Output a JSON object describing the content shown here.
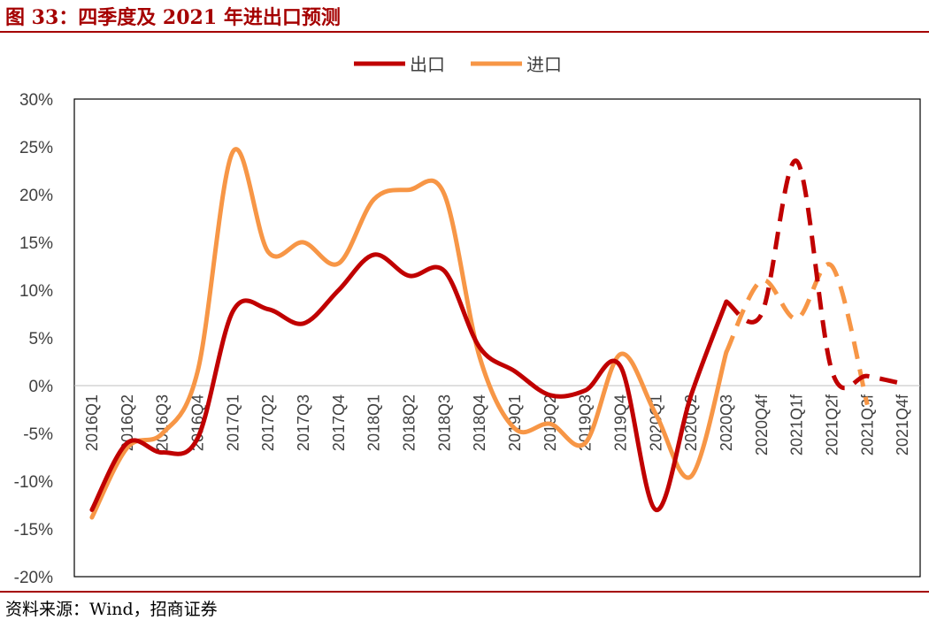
{
  "header": {
    "title": "图 33：四季度及 2021 年进出口预测"
  },
  "footer": {
    "source": "资料来源：Wind，招商证券"
  },
  "chart_data": {
    "type": "line",
    "title": "",
    "xlabel": "",
    "ylabel": "",
    "ylim": [
      -20,
      30
    ],
    "yticks": [
      "-20%",
      "-15%",
      "-10%",
      "-5%",
      "0%",
      "5%",
      "10%",
      "15%",
      "20%",
      "25%",
      "30%"
    ],
    "categories": [
      "2016Q1",
      "2016Q2",
      "2016Q3",
      "2016Q4",
      "2017Q1",
      "2017Q2",
      "2017Q3",
      "2017Q4",
      "2018Q1",
      "2018Q2",
      "2018Q3",
      "2018Q4",
      "2019Q1",
      "2019Q2",
      "2019Q3",
      "2019Q4",
      "2020Q1",
      "2020Q2",
      "2020Q3",
      "2020Q4f",
      "2021Q1f",
      "2021Q2f",
      "2021Q3f",
      "2021Q4f"
    ],
    "legend_position": "top",
    "grid": false,
    "series": [
      {
        "name": "出口",
        "color": "#c00000",
        "values": [
          -13.0,
          -6.0,
          -7.0,
          -5.5,
          7.8,
          8.0,
          6.5,
          10.0,
          13.7,
          11.5,
          12.0,
          4.0,
          1.5,
          -1.0,
          -0.5,
          2.0,
          -13.0,
          -1.0,
          8.8,
          7.5,
          23.5,
          1.5,
          1.0,
          0.2
        ],
        "forecast_from_index": 18
      },
      {
        "name": "进口",
        "color": "#f79646",
        "values": [
          -13.8,
          -6.5,
          -5.0,
          1.5,
          24.5,
          14.0,
          15.0,
          12.8,
          19.5,
          20.5,
          20.0,
          3.0,
          -4.5,
          -4.0,
          -6.0,
          3.3,
          -3.0,
          -9.5,
          3.5,
          11.0,
          7.0,
          12.5,
          -2.0,
          null
        ],
        "forecast_from_index": 18
      }
    ]
  }
}
